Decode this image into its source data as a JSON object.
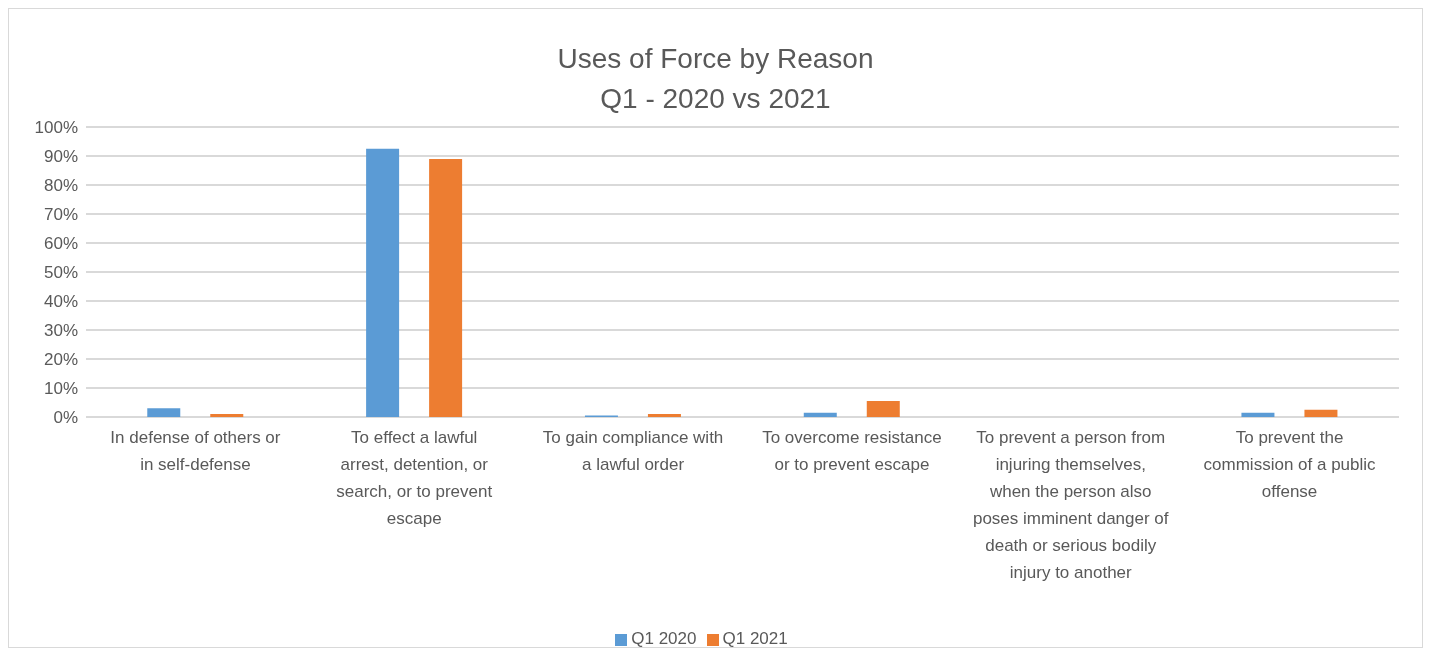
{
  "chart_data": {
    "type": "bar",
    "title": "Uses of Force by Reason",
    "subtitle": "Q1 - 2020 vs 2021",
    "categories": [
      "In defense of others or in self-defense",
      "To effect a lawful arrest, detention, or search, or to prevent escape",
      "To gain compliance with a lawful order",
      "To overcome resistance or to prevent escape",
      "To prevent a person from injuring themselves, when the person also poses imminent danger of death or serious bodily injury to another",
      "To prevent the commission of a public offense"
    ],
    "series": [
      {
        "name": "Q1 2020",
        "color": "#5b9bd5",
        "values": [
          3,
          92.5,
          0.5,
          1.5,
          0,
          1.5
        ]
      },
      {
        "name": "Q1 2021",
        "color": "#ed7d31",
        "values": [
          1,
          89,
          1,
          5.5,
          0,
          2.5
        ]
      }
    ],
    "ylim": [
      0,
      100
    ],
    "yticks": [
      {
        "value": 0,
        "label": "0%"
      },
      {
        "value": 10,
        "label": "10%"
      },
      {
        "value": 20,
        "label": "20%"
      },
      {
        "value": 30,
        "label": "30%"
      },
      {
        "value": 40,
        "label": "40%"
      },
      {
        "value": 50,
        "label": "50%"
      },
      {
        "value": 60,
        "label": "60%"
      },
      {
        "value": 70,
        "label": "70%"
      },
      {
        "value": 80,
        "label": "80%"
      },
      {
        "value": 90,
        "label": "90%"
      },
      {
        "value": 100,
        "label": "100%"
      }
    ],
    "grid": "y",
    "legend": "bottom"
  }
}
